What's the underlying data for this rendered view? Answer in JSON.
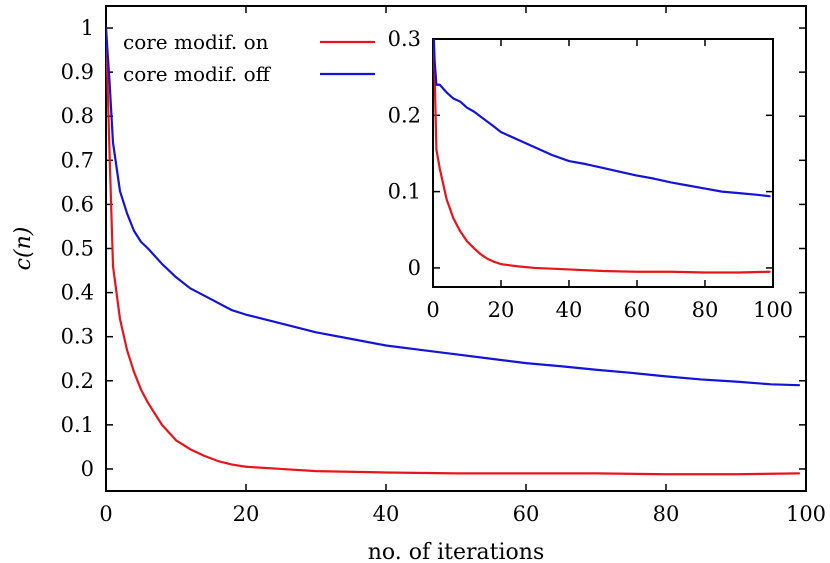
{
  "chart_data": [
    {
      "id": "main",
      "type": "line",
      "xlabel": "no. of iterations",
      "ylabel": "c(n)",
      "xlim": [
        0,
        100
      ],
      "ylim": [
        -0.05,
        1.05
      ],
      "xticks": [
        0,
        20,
        40,
        60,
        80,
        100
      ],
      "yticks": [
        0,
        0.1,
        0.2,
        0.3,
        0.4,
        0.5,
        0.6,
        0.7,
        0.8,
        0.9,
        1
      ],
      "ytick_labels": [
        "0",
        "0.1",
        "0.2",
        "0.3",
        "0.4",
        "0.5",
        "0.6",
        "0.7",
        "0.8",
        "0.9",
        "1"
      ],
      "grid": false,
      "legend_placement": "top-left",
      "series": [
        {
          "name": "core modif. on",
          "color": "#e8141b",
          "x": [
            0,
            0.5,
            1,
            2,
            3,
            4,
            5,
            6,
            8,
            10,
            12,
            14,
            16,
            18,
            20,
            25,
            30,
            40,
            50,
            60,
            70,
            80,
            90,
            99
          ],
          "y": [
            1.0,
            0.72,
            0.46,
            0.34,
            0.27,
            0.22,
            0.18,
            0.15,
            0.1,
            0.065,
            0.045,
            0.03,
            0.018,
            0.01,
            0.005,
            0.0,
            -0.005,
            -0.008,
            -0.01,
            -0.01,
            -0.01,
            -0.012,
            -0.012,
            -0.01
          ]
        },
        {
          "name": "core modif. off",
          "color": "#1414d9",
          "x": [
            0,
            0.5,
            1,
            2,
            3,
            4,
            5,
            6,
            8,
            10,
            12,
            15,
            18,
            20,
            25,
            30,
            35,
            40,
            45,
            50,
            55,
            60,
            65,
            70,
            75,
            80,
            85,
            90,
            95,
            99
          ],
          "y": [
            1.0,
            0.88,
            0.74,
            0.63,
            0.58,
            0.54,
            0.515,
            0.5,
            0.465,
            0.435,
            0.41,
            0.385,
            0.36,
            0.35,
            0.33,
            0.31,
            0.295,
            0.28,
            0.27,
            0.26,
            0.25,
            0.24,
            0.233,
            0.225,
            0.218,
            0.21,
            0.203,
            0.198,
            0.192,
            0.19
          ]
        }
      ]
    },
    {
      "id": "inset",
      "type": "line",
      "xlim": [
        0,
        100
      ],
      "ylim": [
        -0.025,
        0.3
      ],
      "xticks": [
        0,
        20,
        40,
        60,
        80,
        100
      ],
      "yticks": [
        0,
        0.1,
        0.2,
        0.3
      ],
      "ytick_labels": [
        "0",
        "0.1",
        "0.2",
        "0.3"
      ],
      "grid": false,
      "series": [
        {
          "name": "core modif. on",
          "color": "#e8141b",
          "x": [
            0,
            0.5,
            1,
            2,
            3,
            4,
            6,
            8,
            10,
            12,
            14,
            16,
            18,
            20,
            25,
            30,
            40,
            50,
            60,
            70,
            80,
            90,
            99
          ],
          "y": [
            0.33,
            0.25,
            0.155,
            0.13,
            0.11,
            0.09,
            0.065,
            0.048,
            0.035,
            0.026,
            0.018,
            0.012,
            0.008,
            0.005,
            0.002,
            0.0,
            -0.002,
            -0.004,
            -0.005,
            -0.005,
            -0.006,
            -0.006,
            -0.005
          ]
        },
        {
          "name": "core modif. off",
          "color": "#1414d9",
          "x": [
            0,
            0.5,
            1,
            2,
            3,
            4,
            6,
            8,
            10,
            12,
            15,
            18,
            20,
            25,
            30,
            35,
            40,
            45,
            50,
            55,
            60,
            65,
            70,
            75,
            80,
            85,
            90,
            95,
            99
          ],
          "y": [
            0.33,
            0.27,
            0.24,
            0.24,
            0.235,
            0.23,
            0.222,
            0.218,
            0.21,
            0.205,
            0.195,
            0.185,
            0.178,
            0.168,
            0.158,
            0.148,
            0.14,
            0.136,
            0.131,
            0.126,
            0.121,
            0.117,
            0.112,
            0.108,
            0.104,
            0.1,
            0.098,
            0.096,
            0.094
          ]
        }
      ]
    }
  ],
  "legend": [
    {
      "label": "core modif. on",
      "color": "#e8141b"
    },
    {
      "label": "core modif. off",
      "color": "#1414d9"
    }
  ]
}
